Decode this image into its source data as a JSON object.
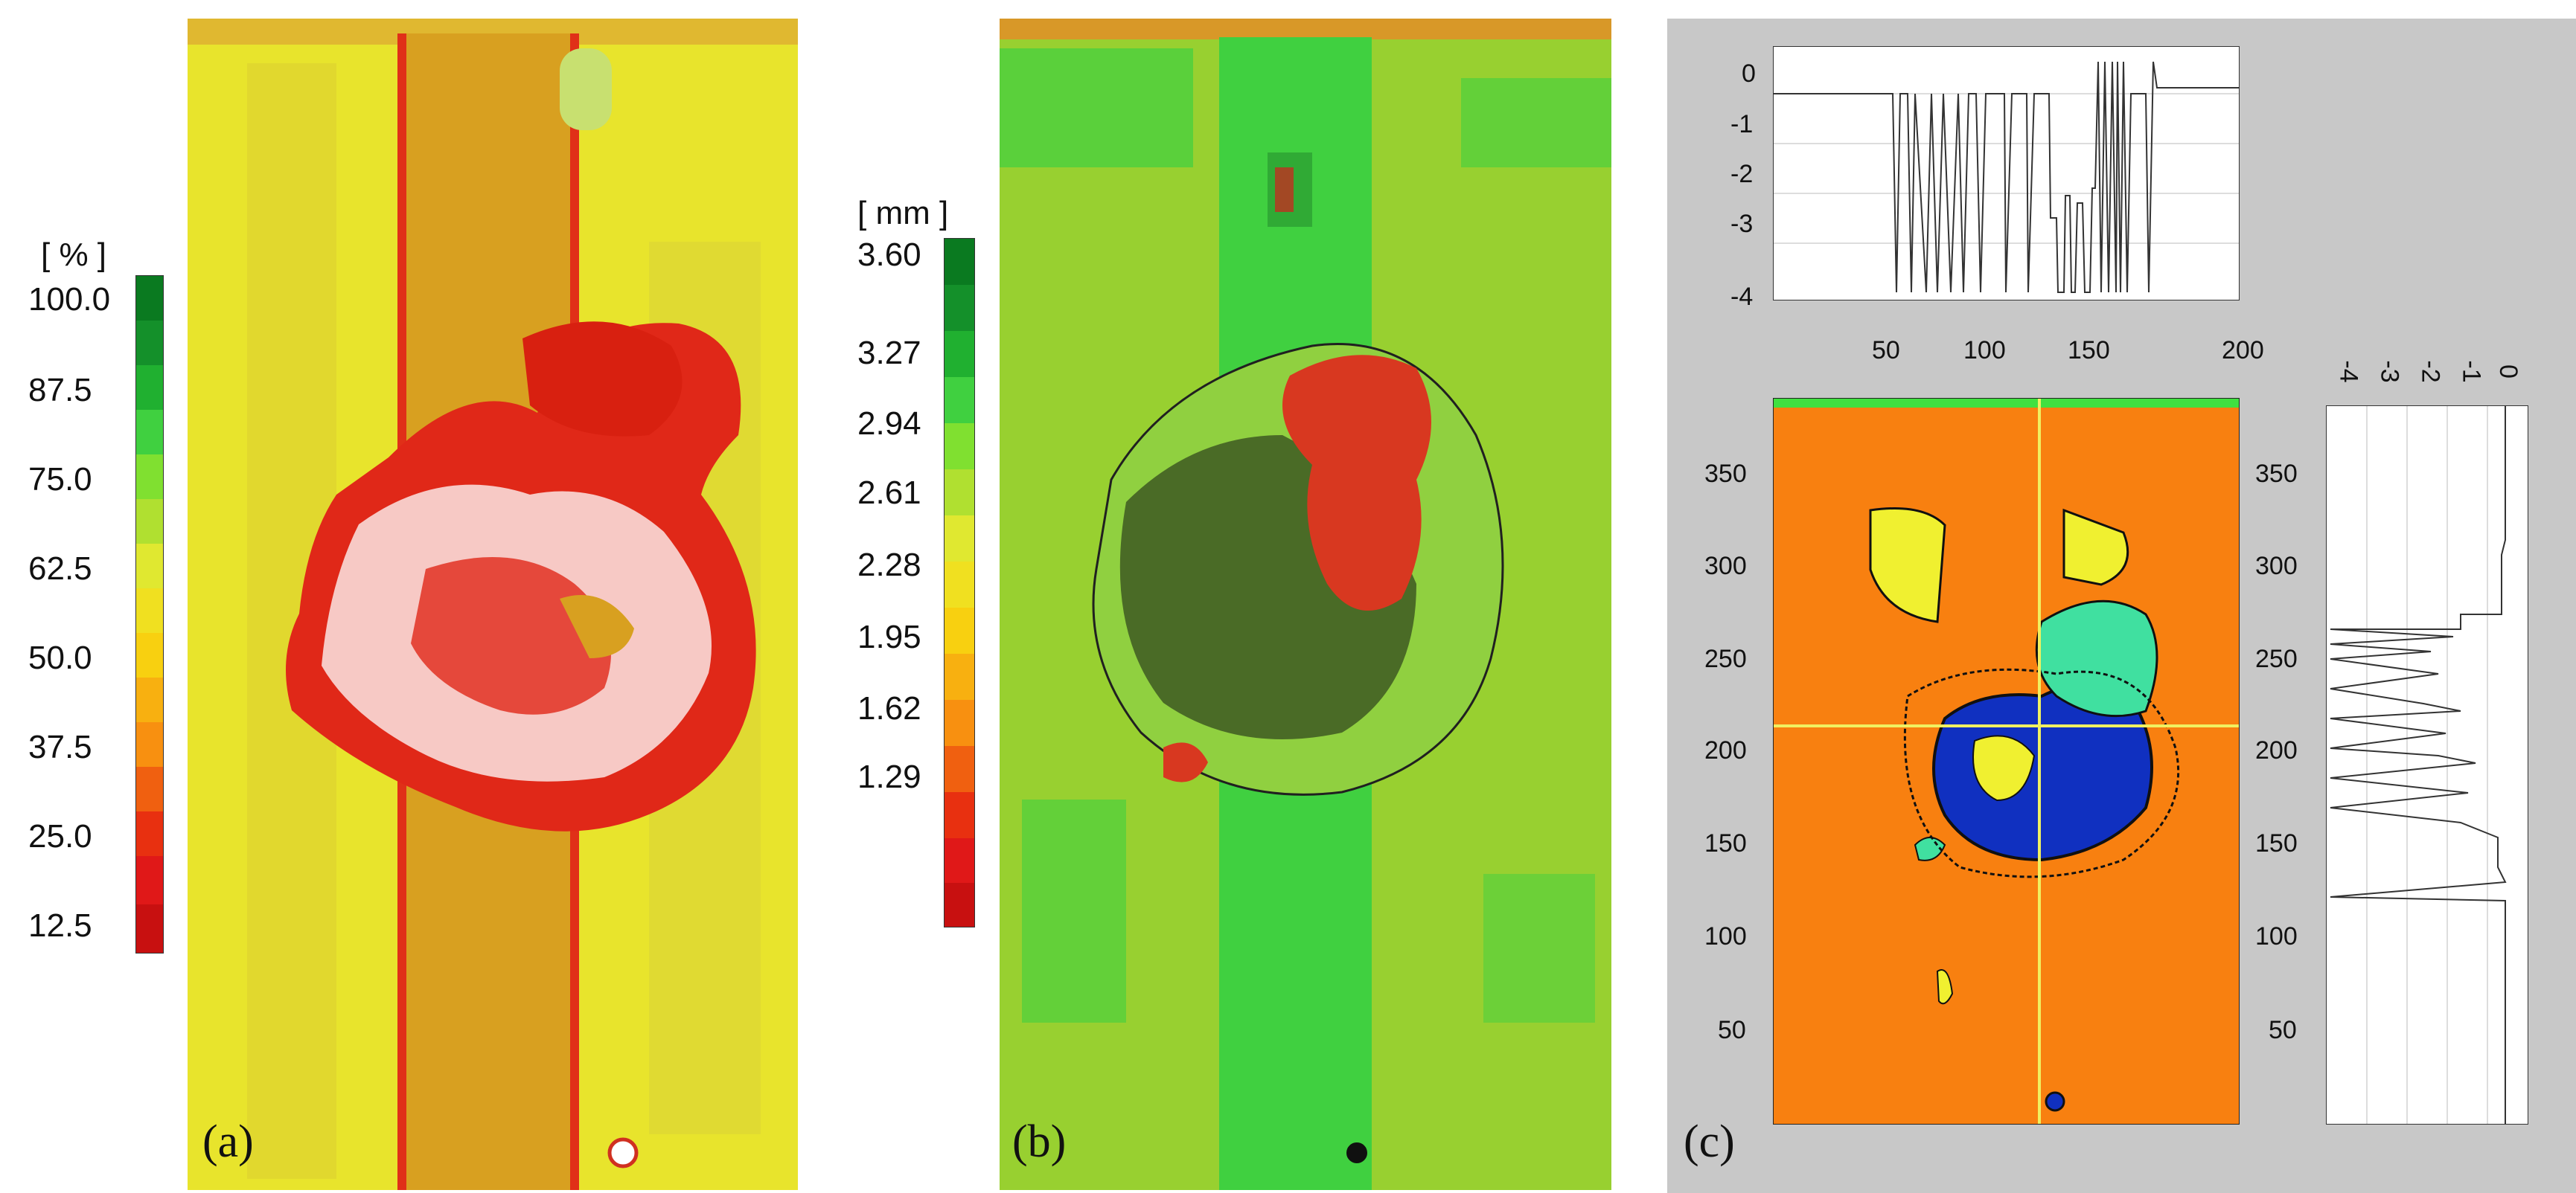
{
  "panel_a": {
    "label": "(a)",
    "unit": "[ % ]",
    "scale_labels": [
      "100.0",
      "87.5",
      "75.0",
      "62.5",
      "50.0",
      "37.5",
      "25.0",
      "12.5"
    ],
    "colors": {
      "base": "#e8e830",
      "band": "#d8a020",
      "damage": "#e02818",
      "white": "#ffffff"
    }
  },
  "panel_b": {
    "label": "(b)",
    "unit": "[ mm ]",
    "scale_labels": [
      "3.60",
      "3.27",
      "2.94",
      "2.61",
      "2.28",
      "1.95",
      "1.62",
      "1.29"
    ],
    "colors": {
      "base": "#98d030",
      "band": "#40d040",
      "damage": "#d83820",
      "dark": "#101810"
    }
  },
  "panel_c": {
    "label": "(c)",
    "top_profile": {
      "y_ticks": [
        "0",
        "-1",
        "-2",
        "-3",
        "-4"
      ],
      "x_ticks": [
        "50",
        "100",
        "150",
        "200"
      ]
    },
    "map_y_ticks": [
      "350",
      "300",
      "250",
      "200",
      "150",
      "100",
      "50"
    ],
    "side_profile": {
      "x_ticks": [
        "-4",
        "-3",
        "-2",
        "-1",
        "0"
      ],
      "y_ticks": [
        "350",
        "300",
        "250",
        "200",
        "150",
        "100",
        "50"
      ]
    },
    "colors": {
      "bg": "#c8c8c8",
      "map": "#f88010",
      "yellow": "#f0f030",
      "teal": "#40e0a0",
      "blue": "#1030c0",
      "crosshair": "#f0f060"
    }
  }
}
